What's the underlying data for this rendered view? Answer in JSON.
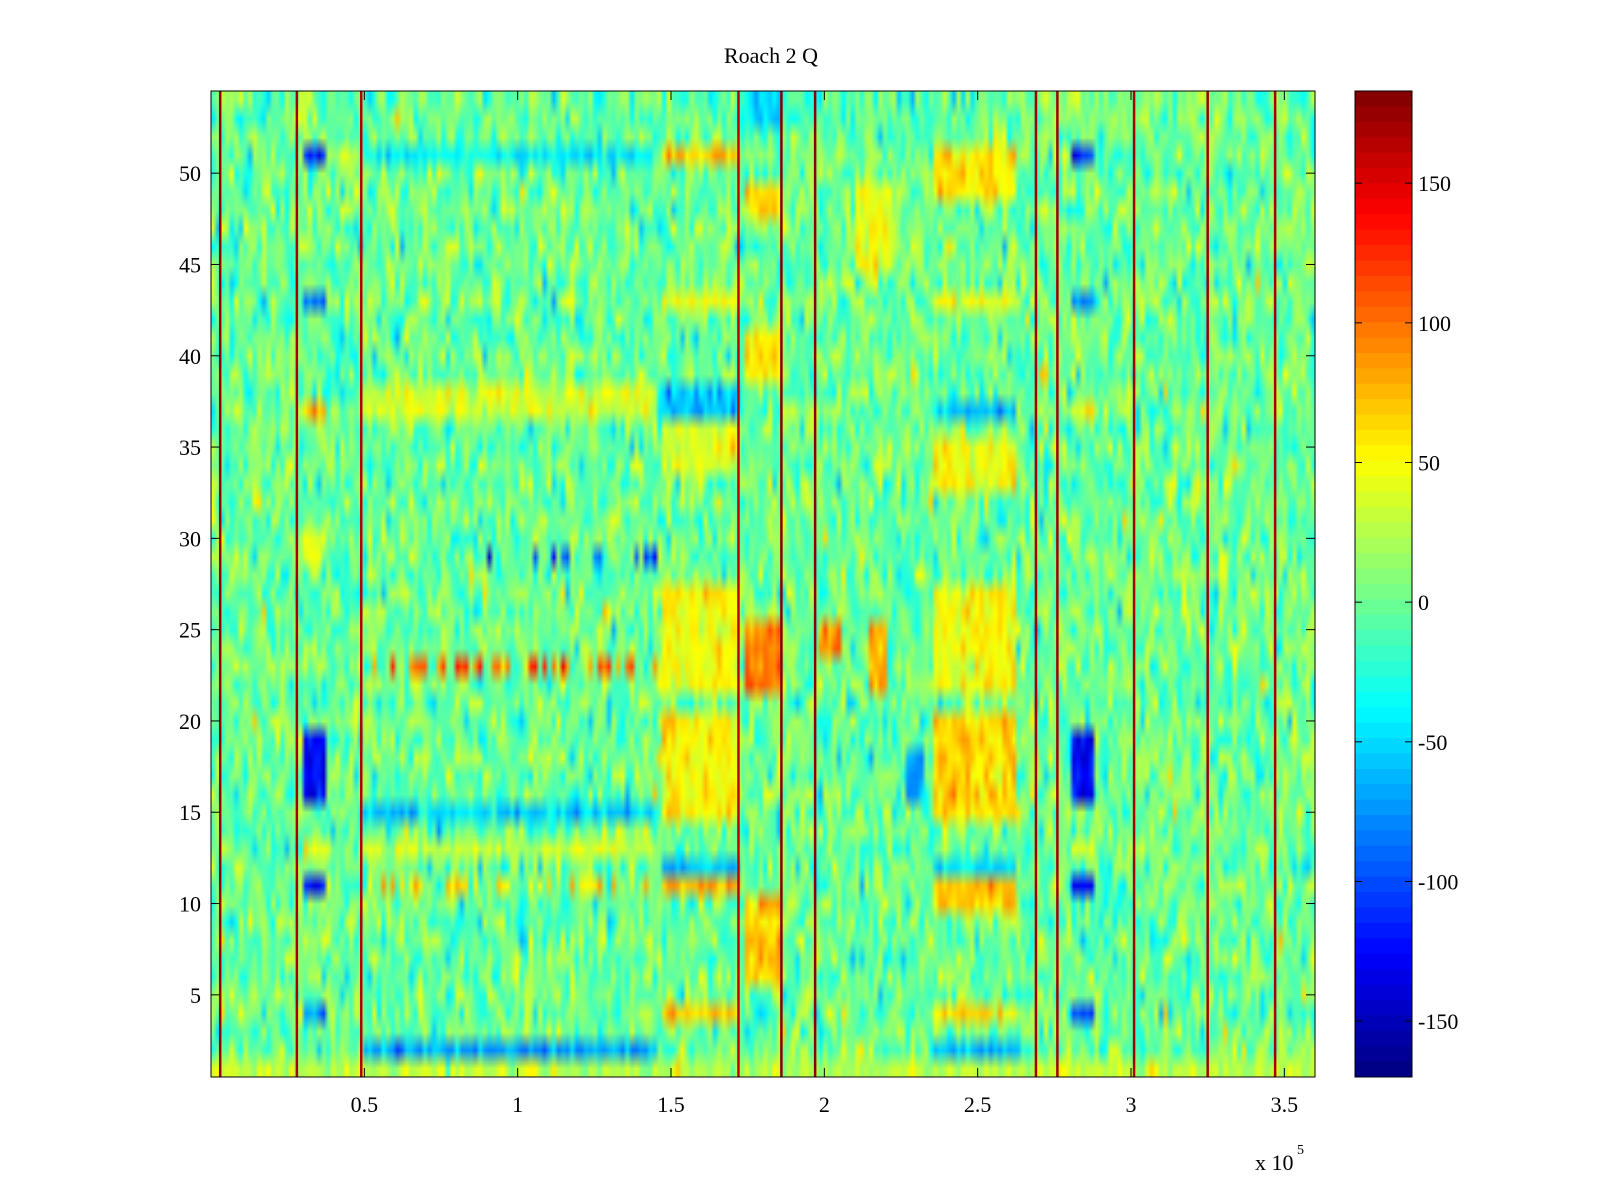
{
  "chart_data": {
    "type": "heatmap",
    "title": "Roach 2 Q",
    "xlabel": "",
    "ylabel": "",
    "x_multiplier_label": "x 10",
    "x_multiplier_exponent": "5",
    "xlim": [
      0.0,
      3.6
    ],
    "ylim": [
      0.5,
      54.5
    ],
    "x_ticks": [
      0.5,
      1,
      1.5,
      2,
      2.5,
      3,
      3.5
    ],
    "x_tick_labels": [
      "0.5",
      "1",
      "1.5",
      "2",
      "2.5",
      "3",
      "3.5"
    ],
    "y_ticks": [
      5,
      10,
      15,
      20,
      25,
      30,
      35,
      40,
      45,
      50
    ],
    "y_tick_labels": [
      "5",
      "10",
      "15",
      "20",
      "25",
      "30",
      "35",
      "40",
      "45",
      "50"
    ],
    "rows": 54,
    "columns": 240,
    "noise_std": 22,
    "colormap": "jet",
    "colorbar": {
      "range": [
        -170,
        183
      ],
      "ticks": [
        -150,
        -100,
        -50,
        0,
        50,
        100,
        150
      ],
      "tick_labels": [
        "-150",
        "-100",
        "-50",
        "0",
        "50",
        "100",
        "150"
      ]
    },
    "vertical_lines": [
      {
        "x": 0.03,
        "value": 175
      },
      {
        "x": 0.28,
        "value": 170
      },
      {
        "x": 0.49,
        "value": 165
      },
      {
        "x": 1.72,
        "value": 160
      },
      {
        "x": 1.86,
        "value": 180
      },
      {
        "x": 1.97,
        "value": 178
      },
      {
        "x": 2.69,
        "value": 170
      },
      {
        "x": 2.76,
        "value": 172
      },
      {
        "x": 3.01,
        "value": 168
      },
      {
        "x": 3.25,
        "value": 172
      },
      {
        "x": 3.47,
        "value": 168
      }
    ],
    "blocks": [
      {
        "x": [
          0.3,
          0.38
        ],
        "y": [
          16,
          19
        ],
        "value": -130
      },
      {
        "x": [
          0.3,
          0.38
        ],
        "y": [
          11,
          11
        ],
        "value": -120
      },
      {
        "x": [
          0.3,
          0.38
        ],
        "y": [
          4,
          4
        ],
        "value": -90
      },
      {
        "x": [
          0.3,
          0.38
        ],
        "y": [
          43,
          43
        ],
        "value": -90
      },
      {
        "x": [
          0.3,
          0.38
        ],
        "y": [
          51,
          51
        ],
        "value": -110
      },
      {
        "x": [
          0.3,
          0.38
        ],
        "y": [
          37,
          37
        ],
        "value": 70
      },
      {
        "x": [
          0.3,
          0.38
        ],
        "y": [
          13,
          13
        ],
        "value": 40
      },
      {
        "x": [
          0.3,
          0.38
        ],
        "y": [
          29,
          30
        ],
        "value": 35
      },
      {
        "x": [
          2.8,
          2.88
        ],
        "y": [
          16,
          19
        ],
        "value": -130
      },
      {
        "x": [
          2.8,
          2.88
        ],
        "y": [
          11,
          11
        ],
        "value": -120
      },
      {
        "x": [
          2.8,
          2.88
        ],
        "y": [
          4,
          4
        ],
        "value": -90
      },
      {
        "x": [
          2.8,
          2.88
        ],
        "y": [
          43,
          43
        ],
        "value": -80
      },
      {
        "x": [
          2.8,
          2.88
        ],
        "y": [
          51,
          51
        ],
        "value": -110
      },
      {
        "x": [
          2.8,
          2.88
        ],
        "y": [
          37,
          37
        ],
        "value": 60
      },
      {
        "x": [
          2.8,
          2.88
        ],
        "y": [
          13,
          13
        ],
        "value": 35
      },
      {
        "x": [
          0.5,
          1.45
        ],
        "y": [
          37,
          38
        ],
        "value": 35
      },
      {
        "x": [
          0.5,
          1.45
        ],
        "y": [
          13,
          13
        ],
        "value": 30
      },
      {
        "x": [
          0.5,
          1.45
        ],
        "y": [
          2,
          2
        ],
        "value": -70
      },
      {
        "x": [
          0.5,
          1.45
        ],
        "y": [
          51,
          51
        ],
        "value": -40
      },
      {
        "x": [
          0.5,
          1.45
        ],
        "y": [
          15,
          15
        ],
        "value": -55
      },
      {
        "x": [
          1.47,
          1.72
        ],
        "y": [
          15,
          20
        ],
        "value": 55
      },
      {
        "x": [
          1.47,
          1.72
        ],
        "y": [
          22,
          27
        ],
        "value": 50
      },
      {
        "x": [
          1.47,
          1.72
        ],
        "y": [
          11,
          11
        ],
        "value": 75
      },
      {
        "x": [
          1.47,
          1.72
        ],
        "y": [
          4,
          4
        ],
        "value": 70
      },
      {
        "x": [
          1.47,
          1.72
        ],
        "y": [
          51,
          51
        ],
        "value": 65
      },
      {
        "x": [
          1.47,
          1.72
        ],
        "y": [
          43,
          43
        ],
        "value": 50
      },
      {
        "x": [
          1.47,
          1.72
        ],
        "y": [
          34,
          36
        ],
        "value": 40
      },
      {
        "x": [
          1.47,
          1.72
        ],
        "y": [
          37,
          38
        ],
        "value": -60
      },
      {
        "x": [
          1.47,
          1.72
        ],
        "y": [
          12,
          12
        ],
        "value": -60
      },
      {
        "x": [
          1.74,
          1.86
        ],
        "y": [
          22,
          25
        ],
        "value": 95
      },
      {
        "x": [
          1.74,
          1.86
        ],
        "y": [
          6,
          10
        ],
        "value": 70
      },
      {
        "x": [
          1.74,
          1.86
        ],
        "y": [
          39,
          41
        ],
        "value": 60
      },
      {
        "x": [
          1.74,
          1.86
        ],
        "y": [
          48,
          49
        ],
        "value": 70
      },
      {
        "x": [
          1.74,
          1.86
        ],
        "y": [
          53,
          54
        ],
        "value": -50
      },
      {
        "x": [
          1.98,
          2.05
        ],
        "y": [
          24,
          25
        ],
        "value": 80
      },
      {
        "x": [
          2.14,
          2.2
        ],
        "y": [
          22,
          25
        ],
        "value": 85
      },
      {
        "x": [
          2.1,
          2.22
        ],
        "y": [
          45,
          49
        ],
        "value": 45
      },
      {
        "x": [
          2.27,
          2.33
        ],
        "y": [
          16,
          18
        ],
        "value": -70
      },
      {
        "x": [
          2.36,
          2.62
        ],
        "y": [
          15,
          20
        ],
        "value": 65
      },
      {
        "x": [
          2.36,
          2.62
        ],
        "y": [
          22,
          27
        ],
        "value": 50
      },
      {
        "x": [
          2.36,
          2.62
        ],
        "y": [
          10,
          11
        ],
        "value": 70
      },
      {
        "x": [
          2.36,
          2.62
        ],
        "y": [
          4,
          4
        ],
        "value": 60
      },
      {
        "x": [
          2.36,
          2.62
        ],
        "y": [
          49,
          51
        ],
        "value": 60
      },
      {
        "x": [
          2.36,
          2.62
        ],
        "y": [
          43,
          43
        ],
        "value": 45
      },
      {
        "x": [
          2.36,
          2.62
        ],
        "y": [
          33,
          35
        ],
        "value": 45
      },
      {
        "x": [
          2.36,
          2.62
        ],
        "y": [
          37,
          37
        ],
        "value": -60
      },
      {
        "x": [
          2.36,
          2.62
        ],
        "y": [
          12,
          12
        ],
        "value": -50
      },
      {
        "x": [
          2.36,
          2.62
        ],
        "y": [
          2,
          2
        ],
        "value": -60
      },
      {
        "x": [
          0.0,
          3.6
        ],
        "y": [
          1,
          1
        ],
        "value": 25
      }
    ],
    "stripe_rows": [
      {
        "y": 23,
        "x": [
          0.5,
          1.45
        ],
        "value": 150
      },
      {
        "y": 29,
        "x": [
          0.9,
          1.45
        ],
        "value": -150
      },
      {
        "y": 11,
        "x": [
          0.5,
          1.45
        ],
        "value": 90
      }
    ]
  }
}
